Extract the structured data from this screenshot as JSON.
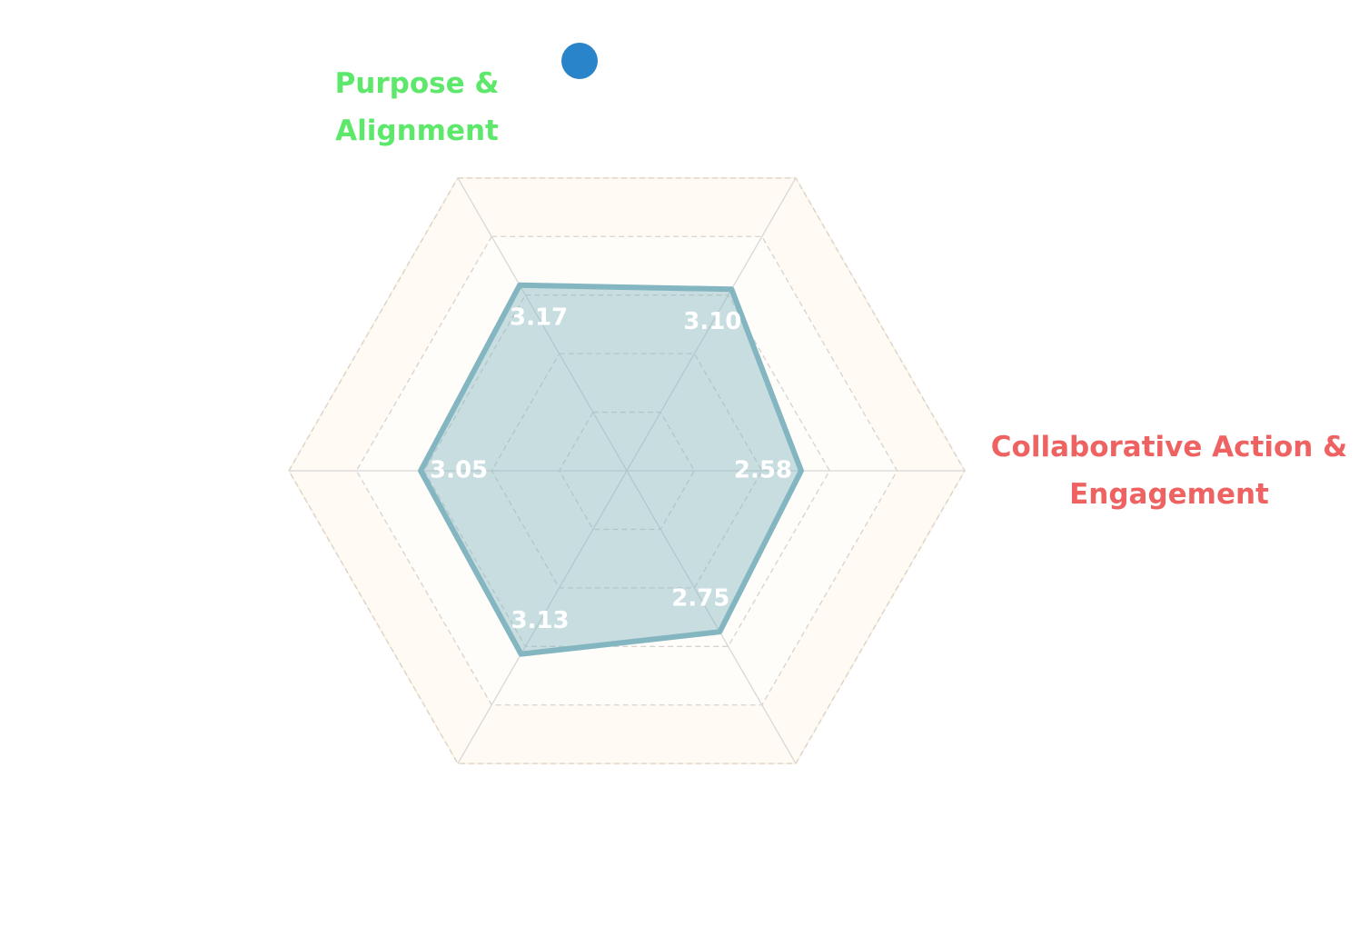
{
  "chart_data": {
    "type": "radar",
    "categories": [
      "Purpose & Alignment",
      null,
      "Collaborative Action & Engagement",
      null,
      null,
      null
    ],
    "category_colors": [
      "#5ee86b",
      null,
      "#ee6262",
      null,
      null,
      null
    ],
    "rotation": 120,
    "direction": "clockwise",
    "rlim": [
      0,
      5
    ],
    "rticks": [
      1,
      2,
      3,
      4,
      5
    ],
    "grid": true,
    "legend": true,
    "series": [
      {
        "color": "#84b6c1",
        "legend_color": "#2a84c9",
        "values": [
          3.17,
          3.1,
          2.58,
          2.75,
          3.13,
          3.05
        ],
        "value_labels": [
          "3.17",
          "3.10",
          "2.58",
          "2.75",
          "3.13",
          "3.05"
        ]
      }
    ]
  }
}
